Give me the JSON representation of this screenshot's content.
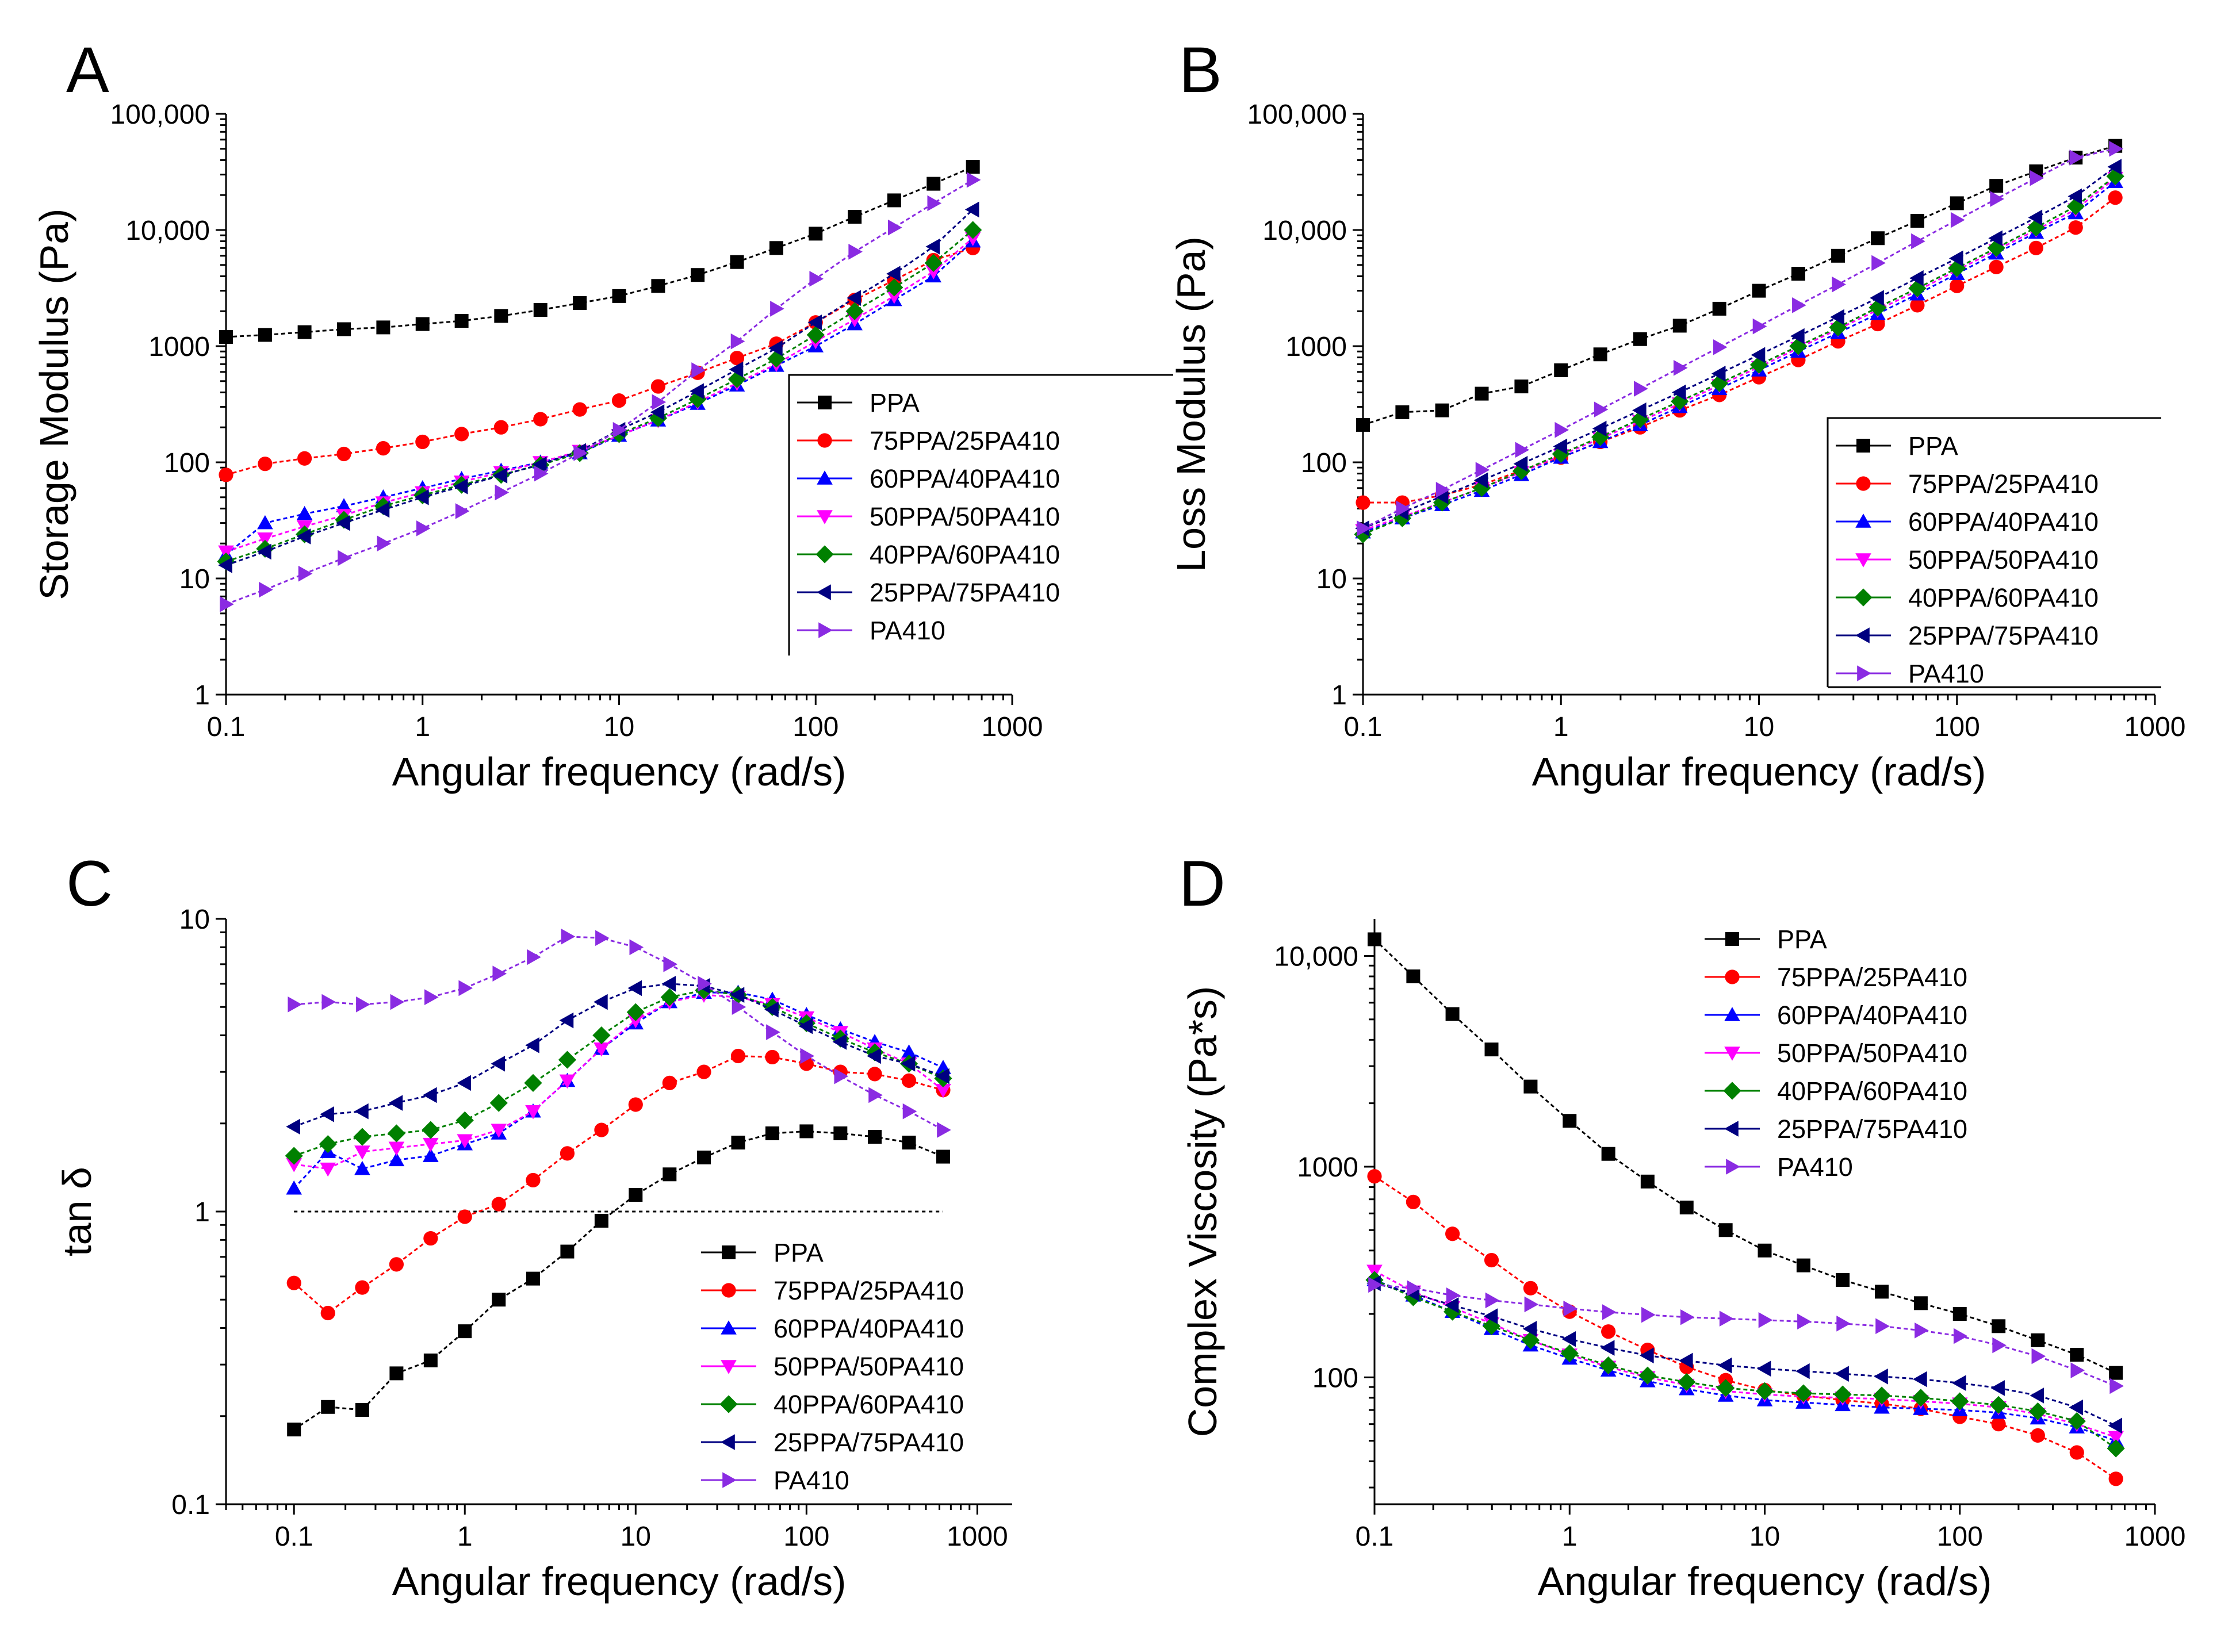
{
  "colors": {
    "PPA": "#000000",
    "75PPA/25PA410": "#ff0000",
    "60PPA/40PA410": "#0000ff",
    "50PPA/50PA410": "#ff00ff",
    "40PPA/60PA410": "#008000",
    "25PPA/75PA410": "#000080",
    "PA410": "#8a2be2"
  },
  "chart_data": [
    {
      "panel": "A",
      "type": "scatter",
      "title": "",
      "xlabel": "Angular frequency (rad/s)",
      "ylabel": "Storage Modulus (Pa)",
      "xscale": "log",
      "yscale": "log",
      "xlim": [
        0.1,
        1000
      ],
      "ylim": [
        1,
        100000
      ],
      "xticks": [
        0.1,
        1,
        10,
        100,
        1000
      ],
      "xtick_labels": [
        "0.1",
        "1",
        "10",
        "100",
        "1000"
      ],
      "yticks": [
        1,
        10,
        100,
        1000,
        10000,
        100000
      ],
      "ytick_labels": [
        "1",
        "10",
        "100",
        "1000",
        "10,000",
        "100,000"
      ],
      "legend_position": "center-right",
      "x": [
        0.1,
        0.158,
        0.251,
        0.398,
        0.631,
        1,
        1.58,
        2.51,
        3.98,
        6.31,
        10,
        15.8,
        25.1,
        39.8,
        63.1,
        100,
        158,
        251,
        398,
        631
      ],
      "series": [
        {
          "name": "PPA",
          "marker": "square",
          "values": [
            1200,
            1250,
            1320,
            1400,
            1450,
            1550,
            1650,
            1820,
            2050,
            2350,
            2700,
            3300,
            4100,
            5300,
            7000,
            9300,
            13000,
            18000,
            25000,
            35000
          ]
        },
        {
          "name": "75PPA/25PA410",
          "marker": "circle",
          "values": [
            78,
            97,
            108,
            118,
            132,
            150,
            175,
            200,
            235,
            285,
            340,
            450,
            590,
            790,
            1050,
            1600,
            2500,
            3700,
            5500,
            7000
          ]
        },
        {
          "name": "60PPA/40PA410",
          "marker": "triangle-up",
          "values": [
            16,
            30,
            36,
            42,
            50,
            60,
            72,
            85,
            100,
            120,
            170,
            230,
            320,
            460,
            680,
            1000,
            1550,
            2500,
            4000,
            8000
          ]
        },
        {
          "name": "50PPA/50PA410",
          "marker": "triangle-down",
          "values": [
            17,
            22,
            28,
            35,
            45,
            55,
            68,
            82,
            100,
            125,
            170,
            230,
            330,
            480,
            700,
            1100,
            1700,
            2700,
            4400,
            8500
          ]
        },
        {
          "name": "40PPA/60PA410",
          "marker": "diamond",
          "values": [
            14,
            18,
            24,
            32,
            42,
            52,
            64,
            78,
            95,
            120,
            175,
            240,
            350,
            520,
            780,
            1250,
            2000,
            3200,
            5200,
            10000
          ]
        },
        {
          "name": "25PPA/75PA410",
          "marker": "triangle-left",
          "values": [
            13,
            17,
            23,
            30,
            39,
            50,
            62,
            77,
            96,
            125,
            190,
            270,
            410,
            630,
            960,
            1600,
            2600,
            4200,
            7200,
            15000
          ]
        },
        {
          "name": "PA410",
          "marker": "triangle-right",
          "values": [
            6,
            8,
            11,
            15,
            20,
            27,
            38,
            55,
            80,
            120,
            190,
            330,
            620,
            1100,
            2100,
            3800,
            6500,
            10500,
            17000,
            27000
          ]
        }
      ]
    },
    {
      "panel": "B",
      "type": "scatter",
      "title": "",
      "xlabel": "Angular frequency (rad/s)",
      "ylabel": "Loss Modulus (Pa)",
      "xscale": "log",
      "yscale": "log",
      "xlim": [
        0.1,
        1000
      ],
      "ylim": [
        1,
        100000
      ],
      "xticks": [
        0.1,
        1,
        10,
        100,
        1000
      ],
      "xtick_labels": [
        "0.1",
        "1",
        "10",
        "100",
        "1000"
      ],
      "yticks": [
        1,
        10,
        100,
        1000,
        10000,
        100000
      ],
      "ytick_labels": [
        "1",
        "10",
        "100",
        "1000",
        "10,000",
        "100,000"
      ],
      "legend_position": "center-right",
      "x": [
        0.1,
        0.158,
        0.251,
        0.398,
        0.631,
        1,
        1.58,
        2.51,
        3.98,
        6.31,
        10,
        15.8,
        25.1,
        39.8,
        63.1,
        100,
        158,
        251,
        398,
        631
      ],
      "series": [
        {
          "name": "PPA",
          "marker": "square",
          "values": [
            210,
            270,
            280,
            390,
            450,
            620,
            850,
            1150,
            1500,
            2100,
            3000,
            4200,
            6000,
            8500,
            12000,
            17000,
            24000,
            32000,
            42000,
            53000
          ]
        },
        {
          "name": "75PPA/25PA410",
          "marker": "circle",
          "values": [
            45,
            45,
            52,
            64,
            85,
            110,
            150,
            200,
            280,
            380,
            540,
            760,
            1100,
            1550,
            2250,
            3300,
            4800,
            7000,
            10500,
            19000
          ]
        },
        {
          "name": "60PPA/40PA410",
          "marker": "triangle-up",
          "values": [
            25,
            33,
            43,
            57,
            78,
            110,
            150,
            210,
            300,
            430,
            620,
            900,
            1300,
            1900,
            2800,
            4200,
            6300,
            9500,
            14000,
            26000
          ]
        },
        {
          "name": "50PPA/50PA410",
          "marker": "triangle-down",
          "values": [
            26,
            34,
            45,
            60,
            82,
            115,
            160,
            225,
            320,
            460,
            660,
            960,
            1400,
            2050,
            3000,
            4500,
            6700,
            10000,
            15000,
            28000
          ]
        },
        {
          "name": "40PPA/60PA410",
          "marker": "diamond",
          "values": [
            24,
            33,
            45,
            60,
            84,
            118,
            165,
            235,
            335,
            480,
            690,
            1000,
            1450,
            2150,
            3150,
            4700,
            7000,
            10500,
            16000,
            29000
          ]
        },
        {
          "name": "25PPA/75PA410",
          "marker": "triangle-left",
          "values": [
            27,
            37,
            51,
            70,
            97,
            137,
            195,
            280,
            400,
            580,
            840,
            1220,
            1780,
            2600,
            3850,
            5700,
            8500,
            12800,
            19500,
            35000
          ]
        },
        {
          "name": "PA410",
          "marker": "triangle-right",
          "values": [
            27,
            40,
            58,
            86,
            128,
            190,
            285,
            430,
            650,
            980,
            1480,
            2250,
            3400,
            5200,
            8000,
            12200,
            18500,
            28000,
            42000,
            50000
          ]
        }
      ]
    },
    {
      "panel": "C",
      "type": "scatter",
      "title": "",
      "xlabel": "Angular frequency (rad/s)",
      "ylabel": "tan δ",
      "xscale": "log",
      "yscale": "log",
      "xlim": [
        0.04,
        1600
      ],
      "ylim": [
        0.1,
        10
      ],
      "xticks": [
        0.1,
        1,
        10,
        100,
        1000
      ],
      "xtick_labels": [
        "0.1",
        "1",
        "10",
        "100",
        "1000"
      ],
      "yticks": [
        0.1,
        1,
        10
      ],
      "ytick_labels": [
        "0.1",
        "1",
        "10"
      ],
      "reference_line": {
        "y": 1,
        "x_from": 0.1,
        "x_to": 631
      },
      "legend_position": "lower-right",
      "x": [
        0.1,
        0.158,
        0.251,
        0.398,
        0.631,
        1,
        1.58,
        2.51,
        3.98,
        6.31,
        10,
        15.8,
        25.1,
        39.8,
        63.1,
        100,
        158,
        251,
        398,
        631
      ],
      "series": [
        {
          "name": "PPA",
          "marker": "square",
          "values": [
            0.18,
            0.215,
            0.21,
            0.28,
            0.31,
            0.39,
            0.5,
            0.59,
            0.73,
            0.93,
            1.14,
            1.34,
            1.53,
            1.72,
            1.85,
            1.88,
            1.85,
            1.8,
            1.72,
            1.54
          ]
        },
        {
          "name": "75PPA/25PA410",
          "marker": "circle",
          "values": [
            0.57,
            0.45,
            0.55,
            0.66,
            0.81,
            0.96,
            1.06,
            1.28,
            1.58,
            1.9,
            2.32,
            2.75,
            3.0,
            3.4,
            3.37,
            3.2,
            3.0,
            2.95,
            2.8,
            2.6
          ]
        },
        {
          "name": "60PPA/40PA410",
          "marker": "triangle-up",
          "values": [
            1.2,
            1.6,
            1.4,
            1.5,
            1.55,
            1.7,
            1.85,
            2.2,
            2.8,
            3.6,
            4.4,
            5.2,
            5.6,
            5.6,
            5.3,
            4.7,
            4.2,
            3.8,
            3.5,
            3.1
          ]
        },
        {
          "name": "50PPA/50PA410",
          "marker": "triangle-down",
          "values": [
            1.45,
            1.4,
            1.6,
            1.65,
            1.7,
            1.75,
            1.9,
            2.2,
            2.8,
            3.6,
            4.5,
            5.2,
            5.5,
            5.4,
            5.1,
            4.6,
            4.1,
            3.6,
            3.2,
            2.6
          ]
        },
        {
          "name": "40PPA/60PA410",
          "marker": "diamond",
          "values": [
            1.55,
            1.7,
            1.8,
            1.85,
            1.9,
            2.05,
            2.35,
            2.75,
            3.3,
            4.0,
            4.8,
            5.4,
            5.7,
            5.5,
            5.0,
            4.4,
            3.9,
            3.5,
            3.2,
            2.85
          ]
        },
        {
          "name": "25PPA/75PA410",
          "marker": "triangle-left",
          "values": [
            1.95,
            2.15,
            2.2,
            2.35,
            2.5,
            2.75,
            3.2,
            3.7,
            4.5,
            5.2,
            5.8,
            6.0,
            5.9,
            5.5,
            4.9,
            4.3,
            3.8,
            3.4,
            3.2,
            2.9
          ]
        },
        {
          "name": "PA410",
          "marker": "triangle-right",
          "values": [
            5.1,
            5.2,
            5.1,
            5.2,
            5.4,
            5.8,
            6.5,
            7.4,
            8.7,
            8.6,
            8.0,
            7.0,
            6.0,
            5.0,
            4.1,
            3.4,
            2.9,
            2.5,
            2.2,
            1.9
          ]
        }
      ]
    },
    {
      "panel": "D",
      "type": "scatter",
      "title": "",
      "xlabel": "Angular frequency (rad/s)",
      "ylabel": "Complex Viscosity (Pa*s)",
      "xscale": "log",
      "yscale": "log",
      "xlim": [
        0.1,
        1000
      ],
      "ylim": [
        25,
        15000
      ],
      "xticks": [
        0.1,
        1,
        10,
        100,
        1000
      ],
      "xtick_labels": [
        "0.1",
        "1",
        "10",
        "100",
        "1000"
      ],
      "yticks": [
        100,
        1000,
        10000
      ],
      "ytick_labels": [
        "100",
        "1000",
        "10,000"
      ],
      "legend_position": "top-center",
      "x": [
        0.1,
        0.158,
        0.251,
        0.398,
        0.631,
        1,
        1.58,
        2.51,
        3.98,
        6.31,
        10,
        15.8,
        25.1,
        39.8,
        63.1,
        100,
        158,
        251,
        398,
        631
      ],
      "series": [
        {
          "name": "PPA",
          "marker": "square",
          "values": [
            12000,
            8000,
            5300,
            3600,
            2400,
            1650,
            1150,
            850,
            640,
            500,
            400,
            340,
            290,
            255,
            225,
            200,
            175,
            150,
            128,
            105
          ]
        },
        {
          "name": "75PPA/25PA410",
          "marker": "circle",
          "values": [
            900,
            680,
            480,
            360,
            265,
            205,
            165,
            135,
            112,
            97,
            87,
            82,
            78,
            75,
            71,
            65,
            60,
            53,
            44,
            33
          ]
        },
        {
          "name": "60PPA/40PA410",
          "marker": "triangle-up",
          "values": [
            290,
            245,
            205,
            170,
            142,
            123,
            108,
            96,
            88,
            82,
            78,
            76,
            74,
            72,
            71,
            70,
            68,
            64,
            58,
            50
          ]
        },
        {
          "name": "50PPA/50PA410",
          "marker": "triangle-down",
          "values": [
            320,
            255,
            215,
            180,
            150,
            128,
            112,
            100,
            92,
            86,
            83,
            81,
            80,
            79,
            77,
            75,
            72,
            67,
            60,
            52
          ]
        },
        {
          "name": "40PPA/60PA410",
          "marker": "diamond",
          "values": [
            290,
            240,
            205,
            175,
            150,
            130,
            114,
            102,
            95,
            89,
            86,
            84,
            83,
            82,
            80,
            77,
            74,
            69,
            62,
            46
          ]
        },
        {
          "name": "25PPA/75PA410",
          "marker": "triangle-left",
          "values": [
            280,
            250,
            220,
            195,
            170,
            152,
            138,
            127,
            120,
            114,
            110,
            107,
            104,
            101,
            98,
            94,
            89,
            82,
            72,
            59
          ]
        },
        {
          "name": "PA410",
          "marker": "triangle-right",
          "values": [
            275,
            265,
            245,
            232,
            222,
            212,
            204,
            198,
            193,
            190,
            187,
            184,
            180,
            175,
            167,
            157,
            142,
            126,
            108,
            91
          ]
        }
      ]
    }
  ]
}
